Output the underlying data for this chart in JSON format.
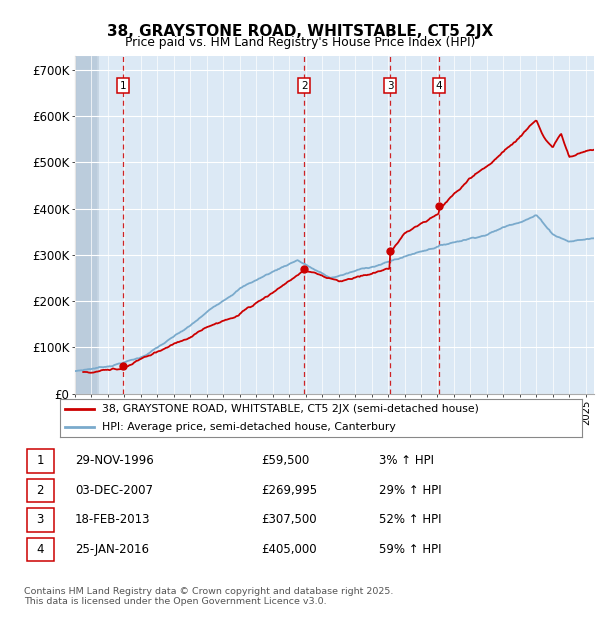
{
  "title": "38, GRAYSTONE ROAD, WHITSTABLE, CT5 2JX",
  "subtitle": "Price paid vs. HM Land Registry's House Price Index (HPI)",
  "ylabel_ticks": [
    "£0",
    "£100K",
    "£200K",
    "£300K",
    "£400K",
    "£500K",
    "£600K",
    "£700K"
  ],
  "ylim": [
    0,
    730000
  ],
  "xlim_start": 1994.0,
  "xlim_end": 2025.5,
  "background_color": "#dce9f5",
  "red_line_color": "#cc0000",
  "blue_line_color": "#7aaacc",
  "red_dashed_color": "#cc0000",
  "sale_years": [
    1996.91,
    2007.92,
    2013.12,
    2016.07
  ],
  "sale_prices": [
    59500,
    269995,
    307500,
    405000
  ],
  "legend_entries": [
    "38, GRAYSTONE ROAD, WHITSTABLE, CT5 2JX (semi-detached house)",
    "HPI: Average price, semi-detached house, Canterbury"
  ],
  "table_rows": [
    {
      "num": "1",
      "date": "29-NOV-1996",
      "price": "£59,500",
      "hpi": "3% ↑ HPI"
    },
    {
      "num": "2",
      "date": "03-DEC-2007",
      "price": "£269,995",
      "hpi": "29% ↑ HPI"
    },
    {
      "num": "3",
      "date": "18-FEB-2013",
      "price": "£307,500",
      "hpi": "52% ↑ HPI"
    },
    {
      "num": "4",
      "date": "25-JAN-2016",
      "price": "£405,000",
      "hpi": "59% ↑ HPI"
    }
  ],
  "footnote": "Contains HM Land Registry data © Crown copyright and database right 2025.\nThis data is licensed under the Open Government Licence v3.0."
}
